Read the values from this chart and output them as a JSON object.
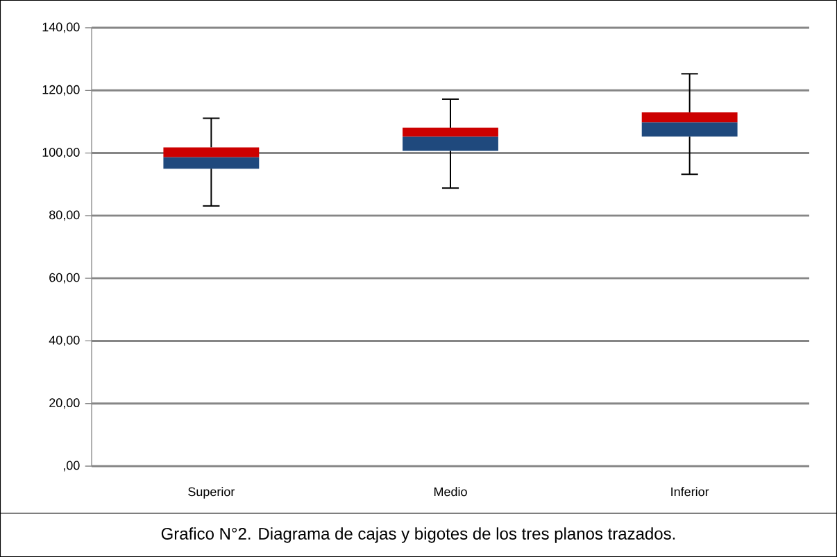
{
  "chart_data": {
    "type": "box",
    "categories": [
      "Superior",
      "Medio",
      "Inferior"
    ],
    "series": [
      {
        "color": "#1f497d",
        "boxes": [
          {
            "low": 83.1,
            "q1": 95.0,
            "median": 98.7,
            "q3": 101.8,
            "high": 111.1
          },
          {
            "low": 88.8,
            "q1": 100.7,
            "median": 105.3,
            "q3": 108.1,
            "high": 117.2
          },
          {
            "low": 93.2,
            "q1": 105.3,
            "median": 109.8,
            "q3": 113.0,
            "high": 125.3
          }
        ]
      }
    ],
    "colors": [
      "#cc0000",
      "#cc0000",
      "#cc0000"
    ],
    "ylim": [
      0,
      140
    ],
    "yticks": [
      {
        "value": 0,
        "label": ",00"
      },
      {
        "value": 20,
        "label": "20,00"
      },
      {
        "value": 40,
        "label": "40,00"
      },
      {
        "value": 60,
        "label": "60,00"
      },
      {
        "value": 80,
        "label": "80,00"
      },
      {
        "value": 100,
        "label": "100,00"
      },
      {
        "value": 120,
        "label": "120,00"
      },
      {
        "value": 140,
        "label": "140,00"
      }
    ],
    "grid": "y",
    "annotations": [
      "Grafico N°2. Diagrama de cajas y bigotes de los tres planos trazados."
    ]
  }
}
